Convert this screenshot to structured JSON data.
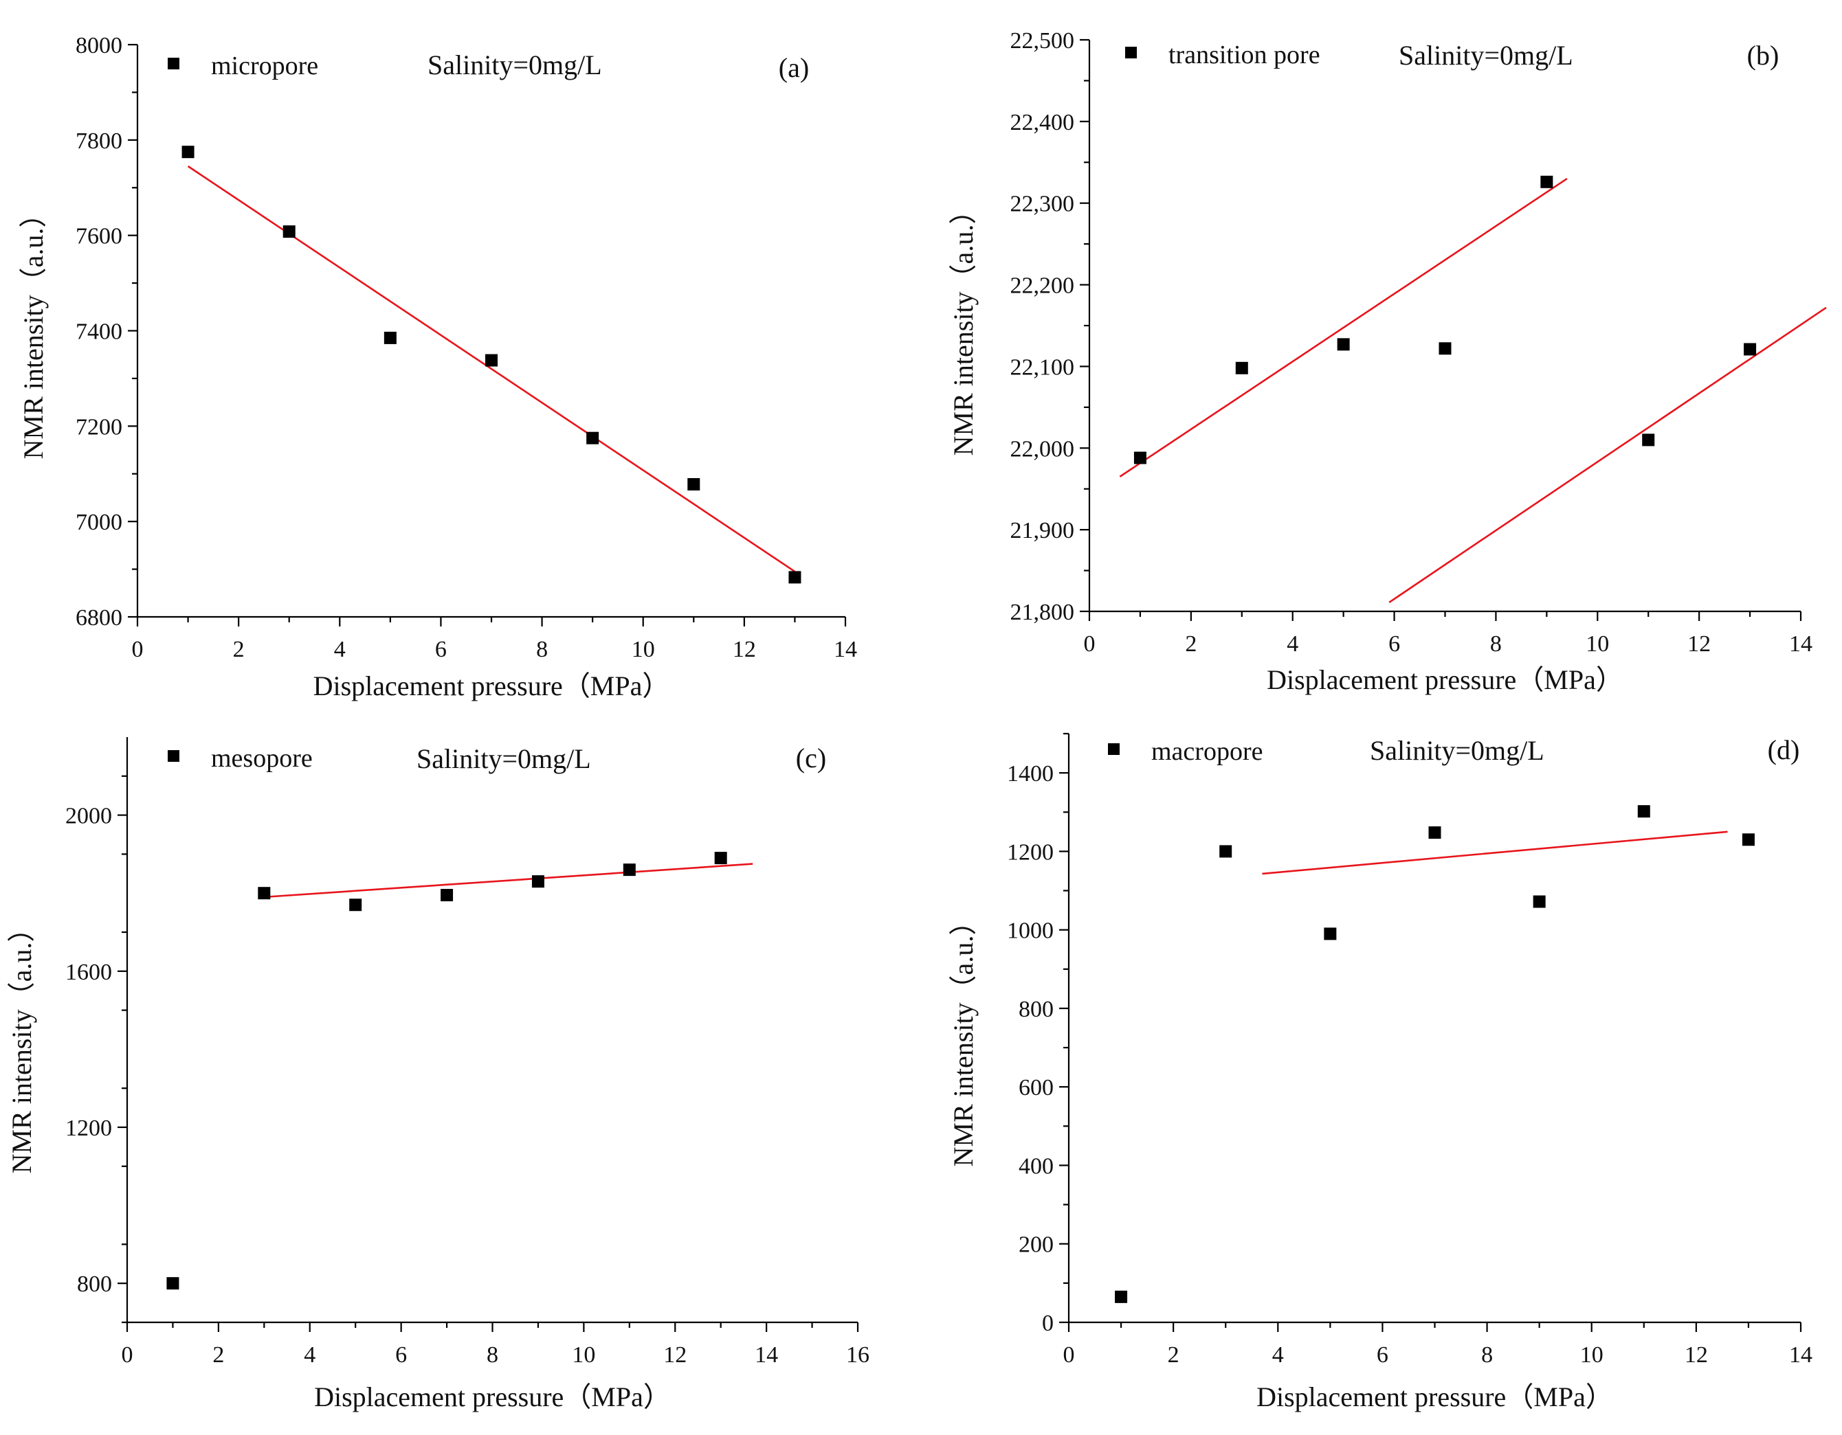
{
  "chart_data": [
    {
      "panel": "(a)",
      "type": "scatter",
      "legend": "micropore",
      "salinity": "Salinity=0mg/L",
      "xlabel": "Displacement pressure（MPa）",
      "ylabel": "NMR intensity（a.u.）",
      "xlim": [
        0,
        14
      ],
      "ylim": [
        6800,
        8000
      ],
      "xticks": [
        0,
        2,
        4,
        6,
        8,
        10,
        12,
        14
      ],
      "xtick_labels": [
        "0",
        "2",
        "4",
        "6",
        "8",
        "10",
        "12",
        "14"
      ],
      "yticks": [
        6800,
        7000,
        7200,
        7400,
        7600,
        7800,
        8000
      ],
      "ytick_labels": [
        "6800",
        "7000",
        "7200",
        "7400",
        "7600",
        "7800",
        "8000"
      ],
      "x": [
        1,
        3,
        5,
        7,
        9,
        11,
        13
      ],
      "y": [
        7775,
        7608,
        7385,
        7338,
        7175,
        7078,
        6883
      ],
      "fit_lines": [
        {
          "x": [
            1,
            13
          ],
          "y": [
            7745,
            6895
          ]
        }
      ]
    },
    {
      "panel": "(b)",
      "type": "scatter",
      "legend": "transition pore",
      "salinity": "Salinity=0mg/L",
      "xlabel": "Displacement pressure（MPa）",
      "ylabel": "NMR intensity（a.u.）",
      "xlim": [
        0,
        14
      ],
      "ylim": [
        21800,
        22500
      ],
      "xticks": [
        0,
        2,
        4,
        6,
        8,
        10,
        12,
        14
      ],
      "xtick_labels": [
        "0",
        "2",
        "4",
        "6",
        "8",
        "10",
        "12",
        "14"
      ],
      "yticks": [
        21800,
        21900,
        22000,
        22100,
        22200,
        22300,
        22400,
        22500
      ],
      "ytick_labels": [
        "21,800",
        "21,900",
        "22,000",
        "22,100",
        "22,200",
        "22,300",
        "22,400",
        "22,500"
      ],
      "x": [
        1,
        3,
        5,
        7,
        9,
        11,
        13
      ],
      "y": [
        21988,
        22098,
        22127,
        22122,
        22326,
        22010,
        22121
      ],
      "fit_lines": [
        {
          "x": [
            0.6,
            9.4
          ],
          "y": [
            21965,
            22330
          ]
        },
        {
          "x": [
            5.9,
            14.5
          ],
          "y": [
            21811,
            22172
          ]
        }
      ]
    },
    {
      "panel": "(c)",
      "type": "scatter",
      "legend": "mesopore",
      "salinity": "Salinity=0mg/L",
      "xlabel": "Displacement pressure（MPa）",
      "ylabel": "NMR intensity（a.u.）",
      "xlim": [
        0,
        16
      ],
      "ylim": [
        700,
        2200
      ],
      "xticks": [
        0,
        2,
        4,
        6,
        8,
        10,
        12,
        14,
        16
      ],
      "xtick_labels": [
        "0",
        "2",
        "4",
        "6",
        "8",
        "10",
        "12",
        "14",
        "16"
      ],
      "yticks": [
        800,
        1200,
        1600,
        2000
      ],
      "ytick_labels": [
        "800",
        "1200",
        "1600",
        "2000"
      ],
      "x": [
        1,
        3,
        5,
        7,
        9,
        11,
        13
      ],
      "y": [
        800,
        1800,
        1770,
        1795,
        1830,
        1860,
        1890
      ],
      "fit_lines": [
        {
          "x": [
            3,
            13.7
          ],
          "y": [
            1790,
            1875
          ]
        }
      ]
    },
    {
      "panel": "(d)",
      "type": "scatter",
      "legend": "macropore",
      "salinity": "Salinity=0mg/L",
      "xlabel": "Displacement pressure（MPa）",
      "ylabel": "NMR intensity（a.u.）",
      "xlim": [
        0,
        14
      ],
      "ylim": [
        0,
        1500
      ],
      "xticks": [
        0,
        2,
        4,
        6,
        8,
        10,
        12,
        14
      ],
      "xtick_labels": [
        "0",
        "2",
        "4",
        "6",
        "8",
        "10",
        "12",
        "14"
      ],
      "yticks": [
        0,
        200,
        400,
        600,
        800,
        1000,
        1200,
        1400
      ],
      "ytick_labels": [
        "0",
        "200",
        "400",
        "600",
        "800",
        "1000",
        "1200",
        "1400"
      ],
      "x": [
        1,
        3,
        5,
        7,
        9,
        11,
        13
      ],
      "y": [
        65,
        1200,
        990,
        1248,
        1072,
        1302,
        1230
      ],
      "fit_lines": [
        {
          "x": [
            3.7,
            12.6
          ],
          "y": [
            1143,
            1250
          ]
        }
      ]
    }
  ]
}
